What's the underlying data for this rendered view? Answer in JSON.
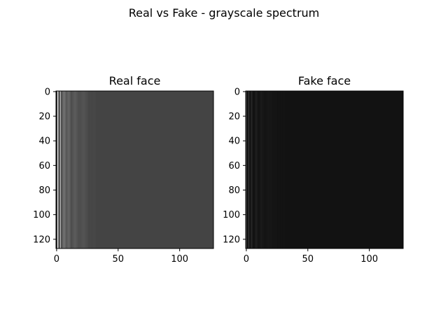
{
  "figure": {
    "title": "Real vs Fake - grayscale spectrum"
  },
  "chart_data": [
    {
      "type": "heatmap",
      "title": "Real face",
      "xlabel": "",
      "ylabel": "",
      "xlim": [
        -0.5,
        127.5
      ],
      "ylim": [
        127.5,
        -0.5
      ],
      "xticks": [
        0,
        50,
        100
      ],
      "yticks": [
        0,
        20,
        40,
        60,
        80,
        100,
        120
      ],
      "colormap": "gray",
      "background_color": "#444444",
      "column_profile": {
        "columns": [
          0,
          1,
          2,
          3,
          4,
          6,
          8,
          10,
          12,
          15,
          18,
          22,
          26,
          30,
          128
        ],
        "intensity": [
          0.05,
          0.9,
          0.15,
          0.65,
          0.3,
          0.45,
          0.34,
          0.4,
          0.3,
          0.36,
          0.3,
          0.33,
          0.28,
          0.28,
          0.27
        ]
      }
    },
    {
      "type": "heatmap",
      "title": "Fake face",
      "xlabel": "",
      "ylabel": "",
      "xlim": [
        -0.5,
        127.5
      ],
      "ylim": [
        127.5,
        -0.5
      ],
      "xticks": [
        0,
        50,
        100
      ],
      "yticks": [
        0,
        20,
        40,
        60,
        80,
        100,
        120
      ],
      "colormap": "gray",
      "background_color": "#121212",
      "column_profile": {
        "columns": [
          0,
          1,
          2,
          3,
          4,
          6,
          8,
          10,
          12,
          15,
          18,
          22,
          26,
          30,
          128
        ],
        "intensity": [
          0.25,
          0.04,
          0.2,
          0.05,
          0.15,
          0.06,
          0.12,
          0.07,
          0.1,
          0.08,
          0.09,
          0.08,
          0.075,
          0.075,
          0.072
        ]
      }
    }
  ]
}
